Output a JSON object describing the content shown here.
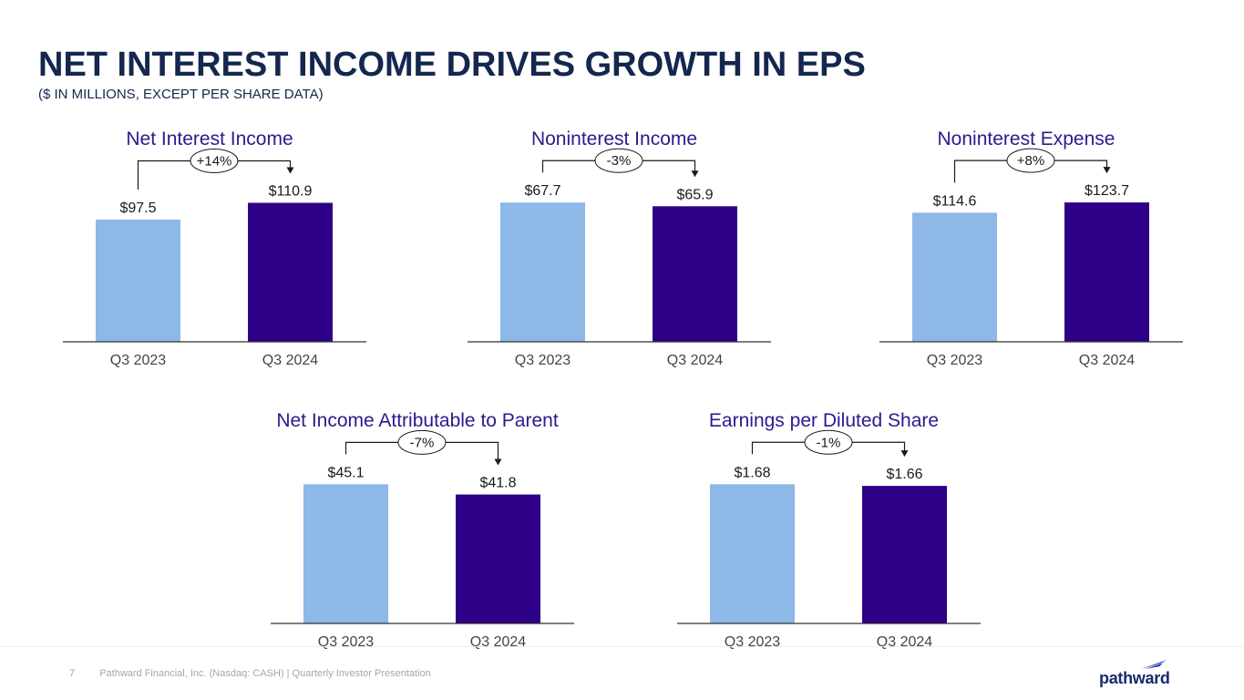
{
  "header": {
    "title": "NET INTEREST INCOME DRIVES GROWTH IN EPS",
    "subtitle": "($ IN MILLIONS, EXCEPT PER SHARE DATA)"
  },
  "colors": {
    "prior": "#8db8e8",
    "current": "#2e0087",
    "title": "#14274e",
    "chart_title": "#2b1a8f"
  },
  "chart_data": [
    {
      "type": "bar",
      "title": "Net Interest Income",
      "categories": [
        "Q3 2023",
        "Q3 2024"
      ],
      "values": [
        97.5,
        110.9
      ],
      "labels": [
        "$97.5",
        "$110.9"
      ],
      "change": "+14%",
      "ylim": [
        0,
        160
      ]
    },
    {
      "type": "bar",
      "title": "Noninterest Income",
      "categories": [
        "Q3 2023",
        "Q3 2024"
      ],
      "values": [
        67.7,
        65.9
      ],
      "labels": [
        "$67.7",
        "$65.9"
      ],
      "change": "-3%",
      "ylim": [
        0,
        97.5
      ]
    },
    {
      "type": "bar",
      "title": "Noninterest Expense",
      "categories": [
        "Q3 2023",
        "Q3 2024"
      ],
      "values": [
        114.6,
        123.7
      ],
      "labels": [
        "$114.6",
        "$123.7"
      ],
      "change": "+8%",
      "ylim": [
        0,
        178
      ]
    },
    {
      "type": "bar",
      "title": "Net Income Attributable to Parent",
      "categories": [
        "Q3 2023",
        "Q3 2024"
      ],
      "values": [
        45.1,
        41.8
      ],
      "labels": [
        "$45.1",
        "$41.8"
      ],
      "change": "-7%",
      "ylim": [
        0,
        65
      ]
    },
    {
      "type": "bar",
      "title": "Earnings per Diluted Share",
      "categories": [
        "Q3 2023",
        "Q3 2024"
      ],
      "values": [
        1.68,
        1.66
      ],
      "labels": [
        "$1.68",
        "$1.66"
      ],
      "change": "-1%",
      "ylim": [
        0,
        2.42
      ]
    }
  ],
  "footer": {
    "page_number": "7",
    "text": "Pathward Financial, Inc. (Nasdaq: CASH) | Quarterly Investor Presentation",
    "logo_text": "pathward"
  }
}
